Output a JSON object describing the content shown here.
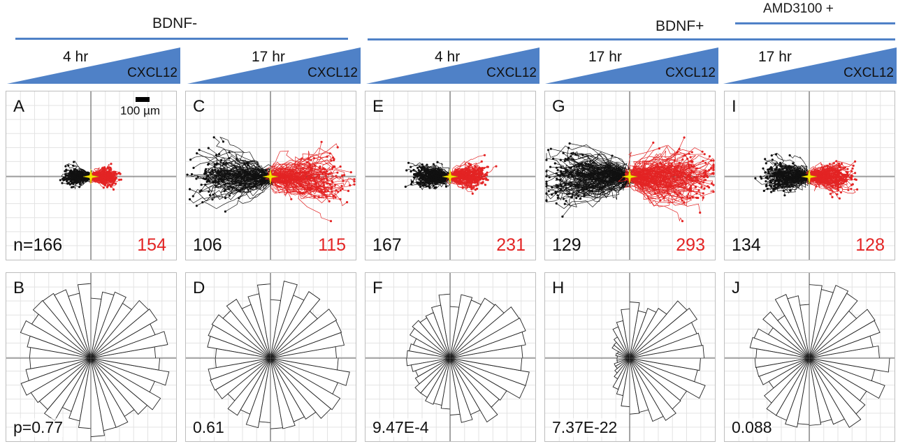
{
  "groups": [
    {
      "id": "bdnf-minus",
      "label": "BDNF-"
    },
    {
      "id": "bdnf-plus",
      "label": "BDNF+"
    },
    {
      "id": "amd",
      "label": "AMD3100 +"
    }
  ],
  "conditions": [
    {
      "time": "4 hr",
      "chemokine": "CXCL12"
    },
    {
      "time": "17 hr",
      "chemokine": "CXCL12"
    },
    {
      "time": "4 hr",
      "chemokine": "CXCL12"
    },
    {
      "time": "17 hr",
      "chemokine": "CXCL12"
    },
    {
      "time": "17 hr",
      "chemokine": "CXCL12"
    }
  ],
  "scale_bar": {
    "label": "100 µm"
  },
  "track_panels": [
    {
      "letter": "A",
      "n_black": "n=166",
      "n_red": "154",
      "spread": 0.1
    },
    {
      "letter": "C",
      "n_black": "106",
      "n_red": "115",
      "spread": 0.3
    },
    {
      "letter": "E",
      "n_black": "167",
      "n_red": "231",
      "spread": 0.14
    },
    {
      "letter": "G",
      "n_black": "129",
      "n_red": "293",
      "spread": 0.34
    },
    {
      "letter": "I",
      "n_black": "134",
      "n_red": "128",
      "spread": 0.18
    }
  ],
  "rose_panels": [
    {
      "letter": "B",
      "p_value": "p=0.77",
      "bias": 0.05
    },
    {
      "letter": "D",
      "p_value": "0.61",
      "bias": 0.08
    },
    {
      "letter": "F",
      "p_value": "9.47E-4",
      "bias": 0.35
    },
    {
      "letter": "H",
      "p_value": "7.37E-22",
      "bias": 0.75
    },
    {
      "letter": "J",
      "p_value": "0.088",
      "bias": 0.18
    }
  ],
  "colors": {
    "accent_blue": "#4f81c7",
    "track_black": "#111111",
    "track_red": "#e32424",
    "start_marker": "#f5e600"
  }
}
